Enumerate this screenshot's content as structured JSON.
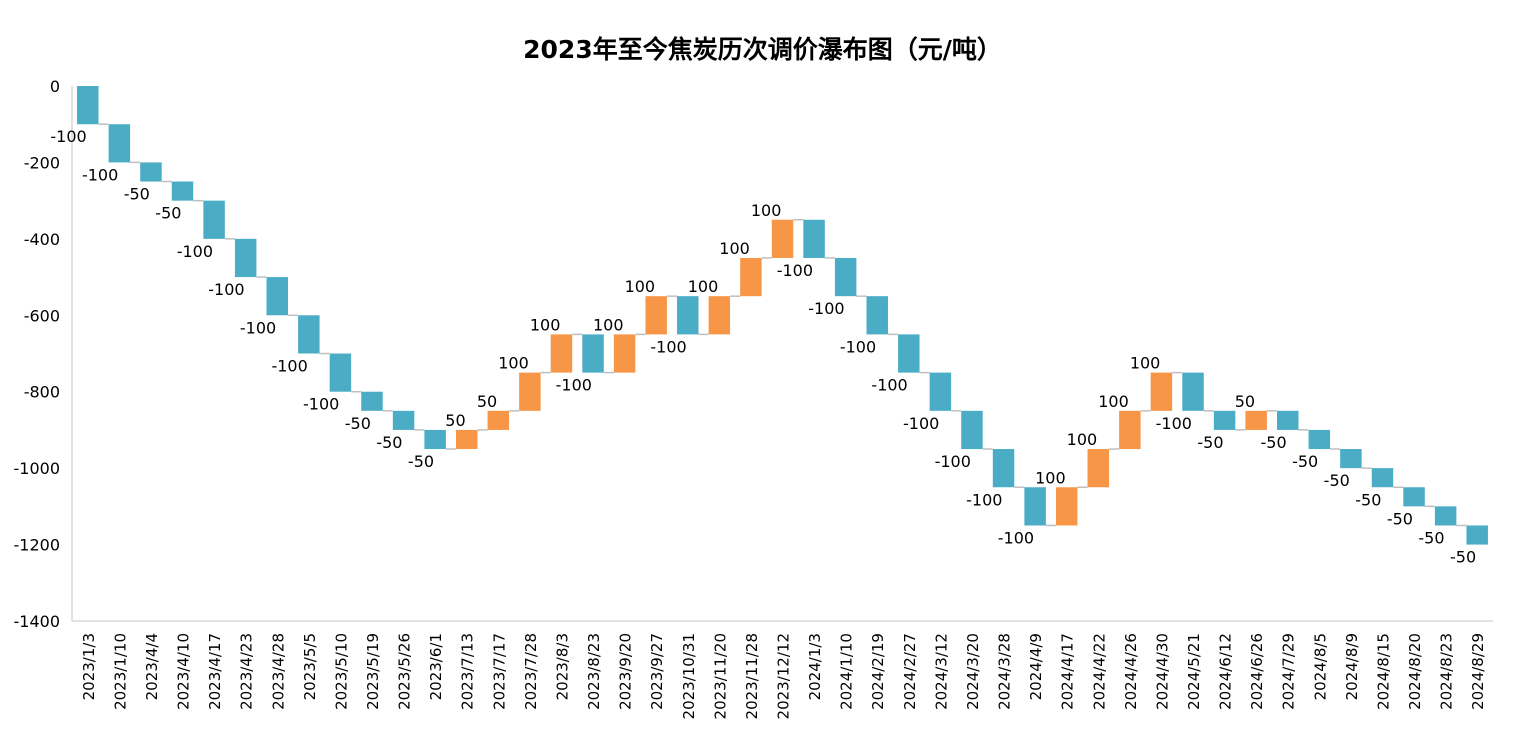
{
  "chart_data": {
    "type": "waterfall",
    "title": "2023年至今焦炭历次调价瀑布图（元/吨）",
    "xlabel": "",
    "ylabel": "",
    "ylim": [
      -1400,
      0
    ],
    "yticks": [
      0,
      -200,
      -400,
      -600,
      -800,
      -1000,
      -1200,
      -1400
    ],
    "grid": false,
    "legend": "none",
    "colors": {
      "decrease": "#4BACC6",
      "increase": "#F79646",
      "connector": "#BFBFBF",
      "axis": "#D9D9D9"
    },
    "categories": [
      "2023/1/3",
      "2023/1/10",
      "2023/4/4",
      "2023/4/10",
      "2023/4/17",
      "2023/4/23",
      "2023/4/28",
      "2023/5/5",
      "2023/5/10",
      "2023/5/19",
      "2023/5/26",
      "2023/6/1",
      "2023/7/13",
      "2023/7/17",
      "2023/7/28",
      "2023/8/3",
      "2023/8/23",
      "2023/9/20",
      "2023/9/27",
      "2023/10/31",
      "2023/11/20",
      "2023/11/28",
      "2023/12/12",
      "2024/1/3",
      "2024/1/10",
      "2024/2/19",
      "2024/2/27",
      "2024/3/12",
      "2024/3/20",
      "2024/3/28",
      "2024/4/9",
      "2024/4/17",
      "2024/4/22",
      "2024/4/26",
      "2024/4/30",
      "2024/5/21",
      "2024/6/12",
      "2024/6/26",
      "2024/7/29",
      "2024/8/5",
      "2024/8/9",
      "2024/8/15",
      "2024/8/20",
      "2024/8/23",
      "2024/8/29"
    ],
    "values": [
      -100,
      -100,
      -50,
      -50,
      -100,
      -100,
      -100,
      -100,
      -100,
      -50,
      -50,
      -50,
      50,
      50,
      100,
      100,
      -100,
      100,
      100,
      -100,
      100,
      100,
      100,
      -100,
      -100,
      -100,
      -100,
      -100,
      -100,
      -100,
      -100,
      100,
      100,
      100,
      100,
      -100,
      -50,
      50,
      -50,
      -50,
      -50,
      -50,
      -50,
      -50,
      -50
    ]
  }
}
